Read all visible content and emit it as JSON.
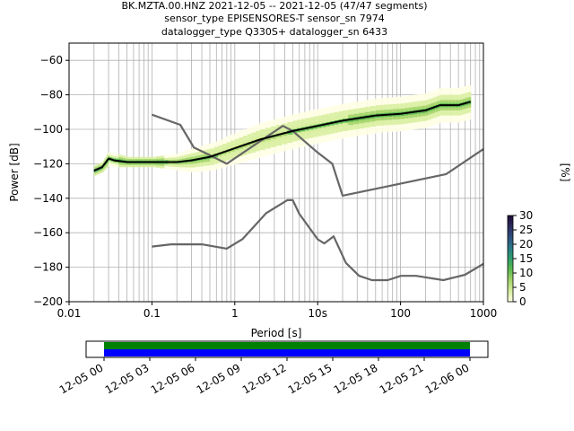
{
  "header": {
    "line1": "BK.MZTA.00.HNZ   2021-12-05 -- 2021-12-05  (47/47 segments)",
    "line2": "sensor_type EPISENSORES-T sensor_sn 7974",
    "line3": "datalogger_type Q330S+ datalogger_sn 6433"
  },
  "chart_data": [
    {
      "type": "heatmap",
      "xlabel": "Period [s]",
      "ylabel": "Power [dB]",
      "x_scale": "log",
      "xlim": [
        0.01,
        1000
      ],
      "ylim": [
        -200,
        -50
      ],
      "x_ticks": [
        {
          "value": 0.01,
          "label": "0.01"
        },
        {
          "value": 0.1,
          "label": "0.1"
        },
        {
          "value": 1,
          "label": "1"
        },
        {
          "value": 10,
          "label": "10s"
        },
        {
          "value": 100,
          "label": "100"
        },
        {
          "value": 1000,
          "label": "1000"
        }
      ],
      "y_ticks": [
        {
          "value": -60,
          "label": "−60"
        },
        {
          "value": -80,
          "label": "−80"
        },
        {
          "value": -100,
          "label": "−100"
        },
        {
          "value": -120,
          "label": "−120"
        },
        {
          "value": -140,
          "label": "−140"
        },
        {
          "value": -160,
          "label": "−160"
        },
        {
          "value": -180,
          "label": "−180"
        },
        {
          "value": -200,
          "label": "−200"
        }
      ],
      "grid": true,
      "colorbar": {
        "label": "[%]",
        "range": [
          0,
          30
        ],
        "ticks": [
          {
            "value": 0,
            "label": "0"
          },
          {
            "value": 5,
            "label": "5"
          },
          {
            "value": 10,
            "label": "10"
          },
          {
            "value": 15,
            "label": "15"
          },
          {
            "value": 20,
            "label": "20"
          },
          {
            "value": 25,
            "label": "25"
          },
          {
            "value": 30,
            "label": "30"
          }
        ],
        "colors": [
          "#ffffe5",
          "#d8eea0",
          "#a3d46a",
          "#58b84f",
          "#2f9e6b",
          "#2a7a86",
          "#2f4f7f",
          "#2b2a5c",
          "#1c0a36"
        ]
      },
      "series": [
        {
          "role": "mean",
          "color": "#000000",
          "x": [
            0.02,
            0.025,
            0.03,
            0.035,
            0.05,
            0.1,
            0.2,
            0.3,
            0.5,
            1,
            2,
            5,
            10,
            20,
            50,
            100,
            200,
            300,
            500,
            700
          ],
          "y": [
            -124,
            -122,
            -117,
            -118,
            -119,
            -119,
            -119,
            -118,
            -116,
            -111,
            -106,
            -101,
            -98,
            -95,
            -92,
            -91,
            -89,
            -86,
            -86,
            -84
          ]
        },
        {
          "role": "noise-model-high",
          "color": "#666666",
          "x": [
            0.1,
            0.22,
            0.32,
            0.5,
            0.8,
            3.8,
            5,
            10,
            15,
            20,
            354.8,
            1000
          ],
          "y": [
            -91.5,
            -97.4,
            -110.5,
            -115,
            -120,
            -98,
            -101,
            -113.5,
            -120,
            -138.5,
            -126,
            -111.5
          ]
        },
        {
          "role": "noise-model-low",
          "color": "#666666",
          "x": [
            0.1,
            0.17,
            0.4,
            0.8,
            1.24,
            2.4,
            4.3,
            5,
            6,
            10,
            12,
            15.6,
            21.9,
            31.6,
            45,
            70,
            101,
            154,
            328,
            600,
            1000
          ],
          "y": [
            -168,
            -166.7,
            -166.7,
            -169.2,
            -163.7,
            -148.6,
            -141.1,
            -141.1,
            -149,
            -163.8,
            -166.2,
            -162.1,
            -177.5,
            -185,
            -187.5,
            -187.5,
            -185,
            -185,
            -187.5,
            -184.4,
            -178
          ]
        }
      ],
      "density": [
        {
          "x": 0.02,
          "y": -124,
          "spread": 3,
          "level": 18
        },
        {
          "x": 0.025,
          "y": -122,
          "spread": 3,
          "level": 16
        },
        {
          "x": 0.03,
          "y": -117,
          "spread": 4,
          "level": 12
        },
        {
          "x": 0.035,
          "y": -118,
          "spread": 4,
          "level": 12
        },
        {
          "x": 0.05,
          "y": -119,
          "spread": 3,
          "level": 14
        },
        {
          "x": 0.1,
          "y": -119,
          "spread": 3,
          "level": 14
        },
        {
          "x": 0.2,
          "y": -119,
          "spread": 5,
          "level": 10
        },
        {
          "x": 0.3,
          "y": -118,
          "spread": 7,
          "level": 8
        },
        {
          "x": 0.5,
          "y": -116,
          "spread": 8,
          "level": 7
        },
        {
          "x": 1,
          "y": -111,
          "spread": 9,
          "level": 6
        },
        {
          "x": 2,
          "y": -106,
          "spread": 10,
          "level": 6
        },
        {
          "x": 5,
          "y": -101,
          "spread": 10,
          "level": 7
        },
        {
          "x": 10,
          "y": -98,
          "spread": 10,
          "level": 7
        },
        {
          "x": 20,
          "y": -95,
          "spread": 10,
          "level": 7
        },
        {
          "x": 50,
          "y": -92,
          "spread": 10,
          "level": 8
        },
        {
          "x": 100,
          "y": -91,
          "spread": 10,
          "level": 8
        },
        {
          "x": 200,
          "y": -89,
          "spread": 10,
          "level": 9
        },
        {
          "x": 300,
          "y": -86,
          "spread": 10,
          "level": 9
        },
        {
          "x": 500,
          "y": -86,
          "spread": 10,
          "level": 9
        },
        {
          "x": 700,
          "y": -84,
          "spread": 10,
          "level": 9
        }
      ]
    },
    {
      "type": "timeline",
      "x_ticks": [
        "12-05 00",
        "12-05 03",
        "12-05 06",
        "12-05 09",
        "12-05 12",
        "12-05 15",
        "12-05 18",
        "12-05 21",
        "12-06 00"
      ],
      "bars": [
        {
          "color": "#008000",
          "start_hour": 0,
          "end_hour": 24
        },
        {
          "color": "#0000ff",
          "start_hour": 0,
          "end_hour": 24
        }
      ]
    }
  ]
}
